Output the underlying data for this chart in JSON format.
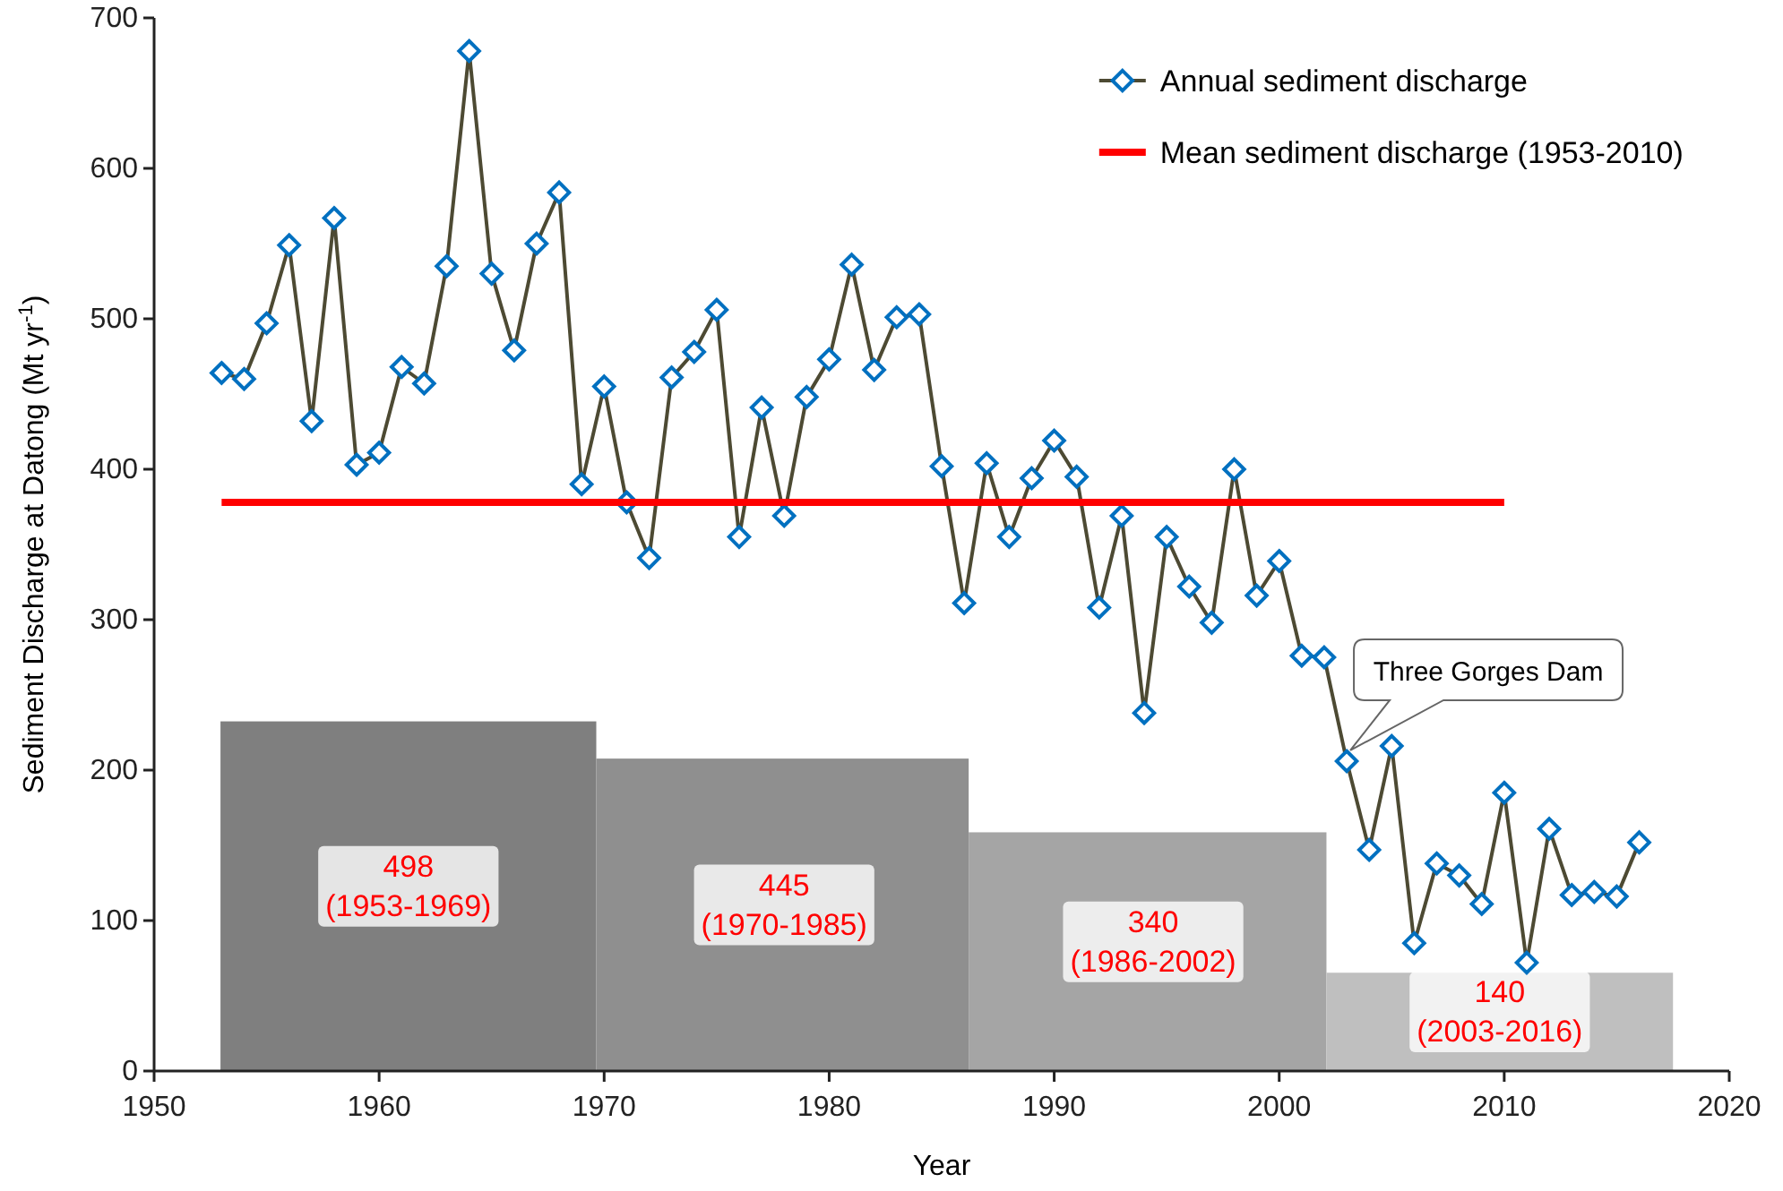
{
  "chart_data": {
    "type": "line",
    "xlabel": "Year",
    "ylabel": "Sediment Discharge at Datong (Mt yr$^{-1}$)",
    "xlim": [
      1950,
      2020
    ],
    "xticks": [
      1950,
      1960,
      1970,
      1980,
      1990,
      2000,
      2010,
      2020
    ],
    "ylim": [
      0,
      700
    ],
    "yticks": [
      0,
      100,
      200,
      300,
      400,
      500,
      600,
      700
    ],
    "y2lim": [
      0,
      1500
    ],
    "tick_labels": "xy",
    "grid": false,
    "legend": "top right",
    "marker": "diamond",
    "line_style": "solid",
    "series": [
      {
        "type": "bar",
        "axis": "y2",
        "x": [
          1961.3,
          1978,
          1994.4,
          2009.8
        ],
        "values": [
          498,
          445,
          340,
          140
        ],
        "colors": [
          "#7f7f7f",
          "#8f8f8f",
          "#a5a5a5",
          "#bfbfbf"
        ],
        "value_labels": [
          "498 (1953-1969)",
          "445 (1970-1985)",
          "340 (1986-2002)",
          "140 (2003-2016)"
        ]
      },
      {
        "name": "Annual sediment discharge",
        "color": "#0070c0",
        "x": [
          1953,
          1954,
          1955,
          1956,
          1957,
          1958,
          1959,
          1960,
          1961,
          1962,
          1963,
          1964,
          1965,
          1966,
          1967,
          1968,
          1969,
          1970,
          1971,
          1972,
          1973,
          1974,
          1975,
          1976,
          1977,
          1978,
          1979,
          1980,
          1981,
          1982,
          1983,
          1984,
          1985,
          1986,
          1987,
          1988,
          1989,
          1990,
          1991,
          1992,
          1993,
          1994,
          1995,
          1996,
          1997,
          1998,
          1999,
          2000,
          2001,
          2002,
          2003,
          2004,
          2005,
          2006,
          2007,
          2008,
          2009,
          2010,
          2011,
          2012,
          2013,
          2014,
          2015,
          2016
        ],
        "values": [
          464,
          460,
          497,
          549,
          432,
          567,
          403,
          411,
          468,
          457,
          535,
          678,
          530,
          479,
          550,
          584,
          390,
          455,
          378,
          341,
          461,
          478,
          506,
          355,
          441,
          369,
          448,
          473,
          536,
          466,
          501,
          503,
          402,
          311,
          404,
          355,
          394,
          419,
          395,
          308,
          369,
          238,
          355,
          322,
          298,
          400,
          316,
          339,
          276,
          275,
          206,
          147,
          216,
          85,
          138,
          130,
          111,
          185,
          72,
          161,
          117,
          119,
          116,
          152
        ]
      },
      {
        "type": "line",
        "name": "Mean sediment discharge (1953-2010)",
        "color": "#ff0000",
        "marker": "none",
        "x": [
          1953,
          2010
        ],
        "values": [
          378,
          378
        ]
      }
    ],
    "annotations": [
      {
        "text": "Three Gorges Dam",
        "x": 2003,
        "y": 206
      }
    ]
  }
}
